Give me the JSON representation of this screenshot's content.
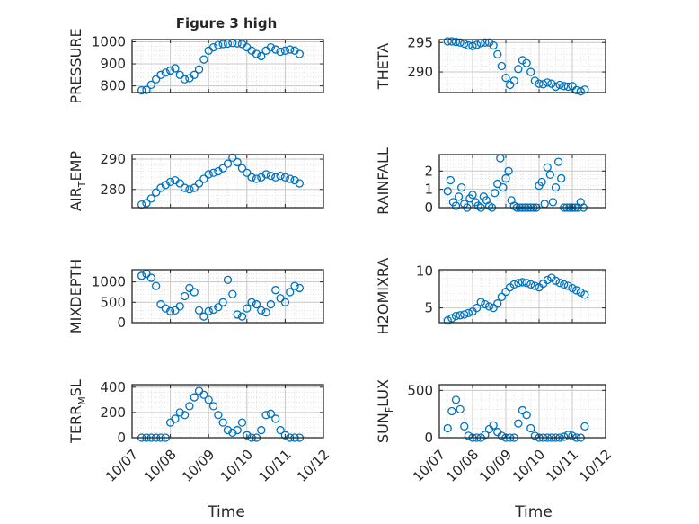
{
  "figure": {
    "title": "Figure 3 high",
    "xlabel": "Time",
    "x_tick_labels": [
      "10/07",
      "10/08",
      "10/09",
      "10/10",
      "10/11",
      "10/12"
    ]
  },
  "colors": {
    "marker": "#0072BD",
    "axis": "#262626",
    "grid": "#dcdcdc",
    "background": "#ffffff"
  },
  "chart_data": [
    {
      "type": "scatter",
      "marker": "open-circle",
      "ylabel": "PRESSURE",
      "ylim": [
        770,
        1010
      ],
      "yticks": [
        800,
        900,
        1000
      ],
      "ytick_labels": [
        "800",
        "900",
        "1000"
      ],
      "x": [
        "10/07 06:00",
        "10/07 09:00",
        "10/07 12:00",
        "10/07 15:00",
        "10/07 18:00",
        "10/07 21:00",
        "10/08 00:00",
        "10/08 03:00",
        "10/08 06:00",
        "10/08 09:00",
        "10/08 12:00",
        "10/08 15:00",
        "10/08 18:00",
        "10/08 21:00",
        "10/09 00:00",
        "10/09 03:00",
        "10/09 06:00",
        "10/09 09:00",
        "10/09 12:00",
        "10/09 15:00",
        "10/09 18:00",
        "10/09 21:00",
        "10/10 00:00",
        "10/10 03:00",
        "10/10 06:00",
        "10/10 09:00",
        "10/10 12:00",
        "10/10 15:00",
        "10/10 18:00",
        "10/10 21:00",
        "10/11 00:00",
        "10/11 03:00",
        "10/11 06:00",
        "10/11 09:00"
      ],
      "y": [
        780,
        782,
        805,
        830,
        850,
        860,
        870,
        880,
        850,
        830,
        835,
        850,
        875,
        920,
        960,
        975,
        985,
        990,
        992,
        995,
        993,
        990,
        975,
        960,
        945,
        935,
        960,
        975,
        965,
        955,
        960,
        965,
        960,
        945
      ]
    },
    {
      "type": "scatter",
      "marker": "open-circle",
      "ylabel": "THETA",
      "ylim": [
        286.5,
        295.5
      ],
      "yticks": [
        290,
        295
      ],
      "ytick_labels": [
        "290",
        "295"
      ],
      "x": [
        "10/07 06:00",
        "10/07 09:00",
        "10/07 12:00",
        "10/07 15:00",
        "10/07 18:00",
        "10/07 21:00",
        "10/08 00:00",
        "10/08 03:00",
        "10/08 06:00",
        "10/08 09:00",
        "10/08 12:00",
        "10/08 15:00",
        "10/08 18:00",
        "10/08 21:00",
        "10/09 00:00",
        "10/09 03:00",
        "10/09 06:00",
        "10/09 09:00",
        "10/09 12:00",
        "10/09 15:00",
        "10/09 18:00",
        "10/09 21:00",
        "10/10 00:00",
        "10/10 03:00",
        "10/10 06:00",
        "10/10 09:00",
        "10/10 12:00",
        "10/10 15:00",
        "10/10 18:00",
        "10/10 21:00",
        "10/11 00:00",
        "10/11 03:00",
        "10/11 06:00",
        "10/11 09:00"
      ],
      "y": [
        295.2,
        295.2,
        295.1,
        295.0,
        294.8,
        294.5,
        294.4,
        294.6,
        294.9,
        295.0,
        295.0,
        294.5,
        293.0,
        291.0,
        289.0,
        287.8,
        288.5,
        290.5,
        292.0,
        291.5,
        290.0,
        288.5,
        288.0,
        287.9,
        288.2,
        288.0,
        287.5,
        287.8,
        287.6,
        287.5,
        287.6,
        286.9,
        286.7,
        287.0
      ]
    },
    {
      "type": "scatter",
      "marker": "open-circle",
      "ylabel": "AIR_TEMP",
      "ylabel_parts": [
        "AIR",
        "T",
        "EMP"
      ],
      "ylim": [
        274,
        291.5
      ],
      "yticks": [
        280,
        290
      ],
      "ytick_labels": [
        "280",
        "290"
      ],
      "x": [
        "10/07 06:00",
        "10/07 09:00",
        "10/07 12:00",
        "10/07 15:00",
        "10/07 18:00",
        "10/07 21:00",
        "10/08 00:00",
        "10/08 03:00",
        "10/08 06:00",
        "10/08 09:00",
        "10/08 12:00",
        "10/08 15:00",
        "10/08 18:00",
        "10/08 21:00",
        "10/09 00:00",
        "10/09 03:00",
        "10/09 06:00",
        "10/09 09:00",
        "10/09 12:00",
        "10/09 15:00",
        "10/09 18:00",
        "10/09 21:00",
        "10/10 00:00",
        "10/10 03:00",
        "10/10 06:00",
        "10/10 09:00",
        "10/10 12:00",
        "10/10 15:00",
        "10/10 18:00",
        "10/10 21:00",
        "10/11 00:00",
        "10/11 03:00",
        "10/11 06:00",
        "10/11 09:00"
      ],
      "y": [
        275,
        275.5,
        277,
        279,
        280.5,
        281.5,
        282.5,
        283,
        282,
        280.5,
        280,
        280.5,
        282,
        283.5,
        285,
        285.5,
        286,
        287,
        288.5,
        290.5,
        289,
        287,
        285.5,
        284,
        283.5,
        284,
        285,
        284.5,
        284,
        284.5,
        284,
        283.5,
        283,
        282
      ]
    },
    {
      "type": "scatter",
      "marker": "open-circle",
      "ylabel": "RAINFALL",
      "ylim": [
        0,
        2.9
      ],
      "yticks": [
        0,
        1,
        2
      ],
      "ytick_labels": [
        "0",
        "1",
        "2"
      ],
      "x": [
        "10/07 06:00",
        "10/07 08:00",
        "10/07 10:00",
        "10/07 12:00",
        "10/07 14:00",
        "10/07 16:00",
        "10/07 18:00",
        "10/07 20:00",
        "10/07 22:00",
        "10/08 00:00",
        "10/08 02:00",
        "10/08 04:00",
        "10/08 06:00",
        "10/08 08:00",
        "10/08 10:00",
        "10/08 12:00",
        "10/08 14:00",
        "10/08 16:00",
        "10/08 18:00",
        "10/08 20:00",
        "10/08 22:00",
        "10/09 00:00",
        "10/09 02:00",
        "10/09 04:00",
        "10/09 06:00",
        "10/09 08:00",
        "10/09 10:00",
        "10/09 12:00",
        "10/09 14:00",
        "10/09 16:00",
        "10/09 18:00",
        "10/09 20:00",
        "10/09 22:00",
        "10/10 00:00",
        "10/10 02:00",
        "10/10 04:00",
        "10/10 06:00",
        "10/10 08:00",
        "10/10 10:00",
        "10/10 12:00",
        "10/10 14:00",
        "10/10 16:00",
        "10/10 18:00",
        "10/10 20:00",
        "10/10 22:00",
        "10/11 00:00",
        "10/11 02:00",
        "10/11 04:00",
        "10/11 06:00",
        "10/11 08:00"
      ],
      "y": [
        0.9,
        1.5,
        0.3,
        0.1,
        0.6,
        1.1,
        0.2,
        0,
        0.5,
        0.7,
        0.3,
        0.1,
        0,
        0.6,
        0.4,
        0.1,
        0,
        0.8,
        1.3,
        2.7,
        1.1,
        1.6,
        2.0,
        0.4,
        0.1,
        0,
        0,
        0,
        0,
        0,
        0,
        0,
        0,
        1.2,
        1.4,
        0.2,
        2.2,
        1.8,
        0.3,
        1.1,
        2.5,
        1.6,
        0,
        0,
        0,
        0,
        0,
        0,
        0.3,
        0
      ]
    },
    {
      "type": "scatter",
      "marker": "open-circle",
      "ylabel": "MIXDEPTH",
      "ylim": [
        0,
        1300
      ],
      "yticks": [
        0,
        500,
        1000
      ],
      "ytick_labels": [
        "0",
        "500",
        "1000"
      ],
      "x": [
        "10/07 06:00",
        "10/07 09:00",
        "10/07 12:00",
        "10/07 15:00",
        "10/07 18:00",
        "10/07 21:00",
        "10/08 00:00",
        "10/08 03:00",
        "10/08 06:00",
        "10/08 09:00",
        "10/08 12:00",
        "10/08 15:00",
        "10/08 18:00",
        "10/08 21:00",
        "10/09 00:00",
        "10/09 03:00",
        "10/09 06:00",
        "10/09 09:00",
        "10/09 12:00",
        "10/09 15:00",
        "10/09 18:00",
        "10/09 21:00",
        "10/10 00:00",
        "10/10 03:00",
        "10/10 06:00",
        "10/10 09:00",
        "10/10 12:00",
        "10/10 15:00",
        "10/10 18:00",
        "10/10 21:00",
        "10/11 00:00",
        "10/11 03:00",
        "10/11 06:00",
        "10/11 09:00"
      ],
      "y": [
        1150,
        1200,
        1100,
        900,
        450,
        350,
        280,
        300,
        400,
        650,
        850,
        750,
        300,
        150,
        280,
        320,
        380,
        500,
        1050,
        700,
        200,
        150,
        350,
        500,
        450,
        300,
        250,
        450,
        800,
        600,
        500,
        750,
        900,
        850
      ]
    },
    {
      "type": "scatter",
      "marker": "open-circle",
      "ylabel": "H2OMIXRA",
      "ylim": [
        3,
        10.2
      ],
      "yticks": [
        5,
        10
      ],
      "ytick_labels": [
        "5",
        "10"
      ],
      "x": [
        "10/07 06:00",
        "10/07 09:00",
        "10/07 12:00",
        "10/07 15:00",
        "10/07 18:00",
        "10/07 21:00",
        "10/08 00:00",
        "10/08 03:00",
        "10/08 06:00",
        "10/08 09:00",
        "10/08 12:00",
        "10/08 15:00",
        "10/08 18:00",
        "10/08 21:00",
        "10/09 00:00",
        "10/09 03:00",
        "10/09 06:00",
        "10/09 09:00",
        "10/09 12:00",
        "10/09 15:00",
        "10/09 18:00",
        "10/09 21:00",
        "10/10 00:00",
        "10/10 03:00",
        "10/10 06:00",
        "10/10 09:00",
        "10/10 12:00",
        "10/10 15:00",
        "10/10 18:00",
        "10/10 21:00",
        "10/11 00:00",
        "10/11 03:00",
        "10/11 06:00",
        "10/11 09:00"
      ],
      "y": [
        3.3,
        3.6,
        3.9,
        4.0,
        4.1,
        4.3,
        4.5,
        5.0,
        5.8,
        5.5,
        5.2,
        5.0,
        5.6,
        6.5,
        7.2,
        7.8,
        8.2,
        8.4,
        8.5,
        8.4,
        8.2,
        8.0,
        7.8,
        8.3,
        8.8,
        9.1,
        8.7,
        8.4,
        8.2,
        8.0,
        7.7,
        7.4,
        7.1,
        6.8
      ]
    },
    {
      "type": "scatter",
      "marker": "open-circle",
      "ylabel": "TERR_MSL",
      "ylabel_parts": [
        "TERR",
        "M",
        "SL"
      ],
      "ylim": [
        0,
        420
      ],
      "yticks": [
        0,
        200,
        400
      ],
      "ytick_labels": [
        "0",
        "200",
        "400"
      ],
      "x": [
        "10/07 06:00",
        "10/07 09:00",
        "10/07 12:00",
        "10/07 15:00",
        "10/07 18:00",
        "10/07 21:00",
        "10/08 00:00",
        "10/08 03:00",
        "10/08 06:00",
        "10/08 09:00",
        "10/08 12:00",
        "10/08 15:00",
        "10/08 18:00",
        "10/08 21:00",
        "10/09 00:00",
        "10/09 03:00",
        "10/09 06:00",
        "10/09 09:00",
        "10/09 12:00",
        "10/09 15:00",
        "10/09 18:00",
        "10/09 21:00",
        "10/10 00:00",
        "10/10 03:00",
        "10/10 06:00",
        "10/10 09:00",
        "10/10 12:00",
        "10/10 15:00",
        "10/10 18:00",
        "10/10 21:00",
        "10/11 00:00",
        "10/11 03:00",
        "10/11 06:00",
        "10/11 09:00"
      ],
      "y": [
        0,
        0,
        0,
        0,
        0,
        0,
        120,
        150,
        200,
        180,
        250,
        320,
        370,
        340,
        300,
        250,
        180,
        120,
        60,
        40,
        60,
        120,
        20,
        0,
        0,
        60,
        180,
        190,
        150,
        60,
        20,
        0,
        0,
        0
      ]
    },
    {
      "type": "scatter",
      "marker": "open-circle",
      "ylabel": "SUN_FLUX",
      "ylabel_parts": [
        "SUN",
        "F",
        "LUX"
      ],
      "ylim": [
        0,
        560
      ],
      "yticks": [
        0,
        500
      ],
      "ytick_labels": [
        "0",
        "500"
      ],
      "x": [
        "10/07 06:00",
        "10/07 09:00",
        "10/07 12:00",
        "10/07 15:00",
        "10/07 18:00",
        "10/07 21:00",
        "10/08 00:00",
        "10/08 03:00",
        "10/08 06:00",
        "10/08 09:00",
        "10/08 12:00",
        "10/08 15:00",
        "10/08 18:00",
        "10/08 21:00",
        "10/09 00:00",
        "10/09 03:00",
        "10/09 06:00",
        "10/09 09:00",
        "10/09 12:00",
        "10/09 15:00",
        "10/09 18:00",
        "10/09 21:00",
        "10/10 00:00",
        "10/10 03:00",
        "10/10 06:00",
        "10/10 09:00",
        "10/10 12:00",
        "10/10 15:00",
        "10/10 18:00",
        "10/10 21:00",
        "10/11 00:00",
        "10/11 03:00",
        "10/11 06:00",
        "10/11 09:00"
      ],
      "y": [
        100,
        280,
        400,
        300,
        120,
        20,
        0,
        0,
        0,
        30,
        90,
        130,
        60,
        20,
        0,
        0,
        0,
        150,
        290,
        240,
        100,
        20,
        0,
        0,
        0,
        0,
        0,
        0,
        10,
        30,
        20,
        0,
        0,
        120
      ]
    }
  ]
}
